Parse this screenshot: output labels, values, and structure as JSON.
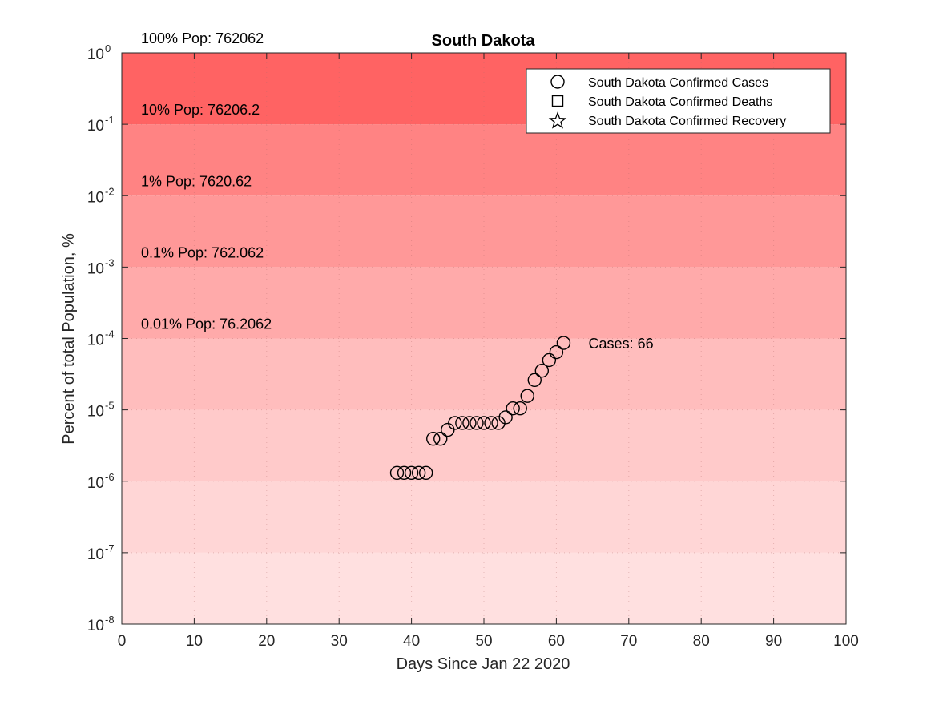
{
  "chart_data": {
    "type": "scatter",
    "title": "South Dakota",
    "xlabel": "Days Since Jan 22 2020",
    "ylabel": "Percent of total Population, %",
    "xlim": [
      0,
      100
    ],
    "ylim": [
      1e-08,
      1
    ],
    "yscale": "log",
    "x_ticks": [
      0,
      10,
      20,
      30,
      40,
      50,
      60,
      70,
      80,
      90,
      100
    ],
    "y_ticks": [
      {
        "base": "10",
        "exp": "-8",
        "value": 1e-08
      },
      {
        "base": "10",
        "exp": "-7",
        "value": 1e-07
      },
      {
        "base": "10",
        "exp": "-6",
        "value": 1e-06
      },
      {
        "base": "10",
        "exp": "-5",
        "value": 1e-05
      },
      {
        "base": "10",
        "exp": "-4",
        "value": 0.0001
      },
      {
        "base": "10",
        "exp": "-3",
        "value": 0.001
      },
      {
        "base": "10",
        "exp": "-2",
        "value": 0.01
      },
      {
        "base": "10",
        "exp": "-1",
        "value": 0.1
      },
      {
        "base": "10",
        "exp": "0",
        "value": 1
      }
    ],
    "bands": [
      {
        "from": 1e-08,
        "to": 1e-07,
        "color": "#ffe0e0"
      },
      {
        "from": 1e-07,
        "to": 1e-06,
        "color": "#ffd6d6"
      },
      {
        "from": 1e-06,
        "to": 1e-05,
        "color": "#ffcaca"
      },
      {
        "from": 1e-05,
        "to": 0.0001,
        "color": "#ffbdbd"
      },
      {
        "from": 0.0001,
        "to": 0.001,
        "color": "#ffaaaa"
      },
      {
        "from": 0.001,
        "to": 0.01,
        "color": "#ff9898"
      },
      {
        "from": 0.01,
        "to": 0.1,
        "color": "#ff8383"
      },
      {
        "from": 0.1,
        "to": 1,
        "color": "#ff6363"
      }
    ],
    "band_labels": [
      {
        "text": "100% Pop: 762062",
        "y": 1
      },
      {
        "text": "10% Pop: 76206.2",
        "y": 0.1
      },
      {
        "text": "1% Pop: 7620.62",
        "y": 0.01
      },
      {
        "text": "0.1% Pop: 762.062",
        "y": 0.001
      },
      {
        "text": "0.01% Pop: 76.2062",
        "y": 0.0001
      }
    ],
    "series": [
      {
        "name": "South Dakota Confirmed Cases",
        "marker": "circle",
        "x": [
          38,
          39,
          40,
          41,
          42,
          43,
          44,
          45,
          46,
          47,
          48,
          49,
          50,
          51,
          52,
          53,
          54,
          55,
          56,
          57,
          58,
          59,
          60,
          61
        ],
        "y": [
          1.31e-06,
          1.31e-06,
          1.31e-06,
          1.31e-06,
          1.31e-06,
          3.94e-06,
          3.94e-06,
          5.25e-06,
          6.56e-06,
          6.56e-06,
          6.56e-06,
          6.56e-06,
          6.56e-06,
          6.56e-06,
          6.56e-06,
          7.87e-06,
          1.05e-05,
          1.05e-05,
          1.57e-05,
          2.62e-05,
          3.54e-05,
          4.98e-05,
          6.43e-05,
          8.66e-05
        ]
      }
    ],
    "legend": {
      "position": "top-right",
      "entries": [
        {
          "label": "South Dakota Confirmed Cases",
          "marker": "circle"
        },
        {
          "label": "South Dakota Confirmed Deaths",
          "marker": "square"
        },
        {
          "label": "South Dakota Confirmed Recovery",
          "marker": "star"
        }
      ]
    },
    "annotations": [
      {
        "text": "Cases: 66",
        "x": 64,
        "y": 8.66e-05
      }
    ]
  }
}
